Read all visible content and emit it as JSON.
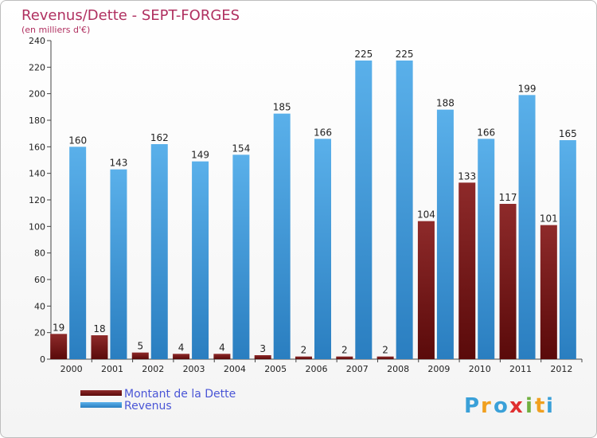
{
  "chart_data": {
    "type": "bar",
    "title": "Revenus/Dette - SEPT-FORGES",
    "subtitle": "(en milliers d'€)",
    "categories": [
      "2000",
      "2001",
      "2002",
      "2003",
      "2004",
      "2005",
      "2006",
      "2007",
      "2008",
      "2009",
      "2010",
      "2011",
      "2012"
    ],
    "series": [
      {
        "name": "Montant de la Dette",
        "color": "#7a1c1c",
        "values": [
          19,
          18,
          5,
          4,
          4,
          3,
          2,
          2,
          2,
          104,
          133,
          117,
          101
        ]
      },
      {
        "name": "Revenus",
        "color": "#4da6e6",
        "values": [
          160,
          143,
          162,
          149,
          154,
          185,
          166,
          225,
          225,
          188,
          166,
          199,
          165
        ]
      }
    ],
    "ylim": [
      0,
      240
    ],
    "yticks": [
      0,
      20,
      40,
      60,
      80,
      100,
      120,
      140,
      160,
      180,
      200,
      220,
      240
    ],
    "grid": false,
    "legend": "bottom-left"
  },
  "branding": {
    "logo_letters": [
      "P",
      "r",
      "o",
      "x",
      "i",
      "t",
      "i"
    ],
    "logo_colors": [
      "#3aa0d8",
      "#f0a020",
      "#3aa0d8",
      "#e03030",
      "#70b040",
      "#f0a020",
      "#3aa0d8"
    ]
  }
}
